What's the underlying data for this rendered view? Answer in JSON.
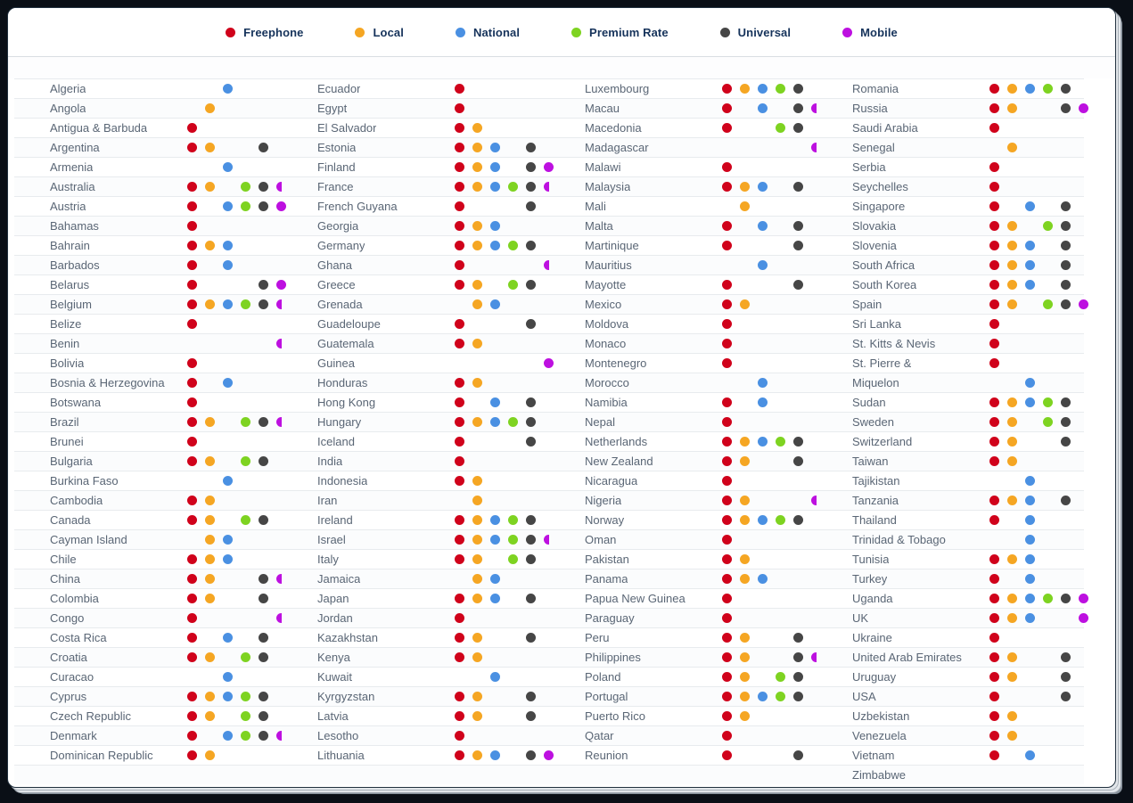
{
  "chart_data": {
    "type": "table",
    "title": "",
    "legend": [
      "Freephone",
      "Local",
      "National",
      "Premium Rate",
      "Universal",
      "Mobile"
    ],
    "legend_position": "top",
    "colors": [
      "#d0021b",
      "#f5a623",
      "#4a90e2",
      "#7ed321",
      "#464646",
      "#bd10e0"
    ],
    "note_dots_are_indices_into_legend": true,
    "columns": [
      [
        {
          "country": "Algeria",
          "dots": [
            2
          ]
        },
        {
          "country": "Angola",
          "dots": [
            1
          ]
        },
        {
          "country": "Antigua & Barbuda",
          "dots": [
            0
          ]
        },
        {
          "country": "Argentina",
          "dots": [
            0,
            1,
            4
          ]
        },
        {
          "country": "Armenia",
          "dots": [
            2
          ]
        },
        {
          "country": "Australia",
          "dots": [
            0,
            1,
            3,
            4,
            5
          ]
        },
        {
          "country": "Austria",
          "dots": [
            0,
            2,
            3,
            4,
            5
          ]
        },
        {
          "country": "Bahamas",
          "dots": [
            0
          ]
        },
        {
          "country": "Bahrain",
          "dots": [
            0,
            1,
            2
          ]
        },
        {
          "country": "Barbados",
          "dots": [
            0,
            2
          ]
        },
        {
          "country": "Belarus",
          "dots": [
            0,
            4,
            5
          ]
        },
        {
          "country": "Belgium",
          "dots": [
            0,
            1,
            2,
            3,
            4,
            5
          ]
        },
        {
          "country": "Belize",
          "dots": [
            0
          ]
        },
        {
          "country": "Benin",
          "dots": [
            5
          ]
        },
        {
          "country": "Bolivia",
          "dots": [
            0
          ]
        },
        {
          "country": "Bosnia & Herzegovina",
          "dots": [
            0,
            2
          ]
        },
        {
          "country": "Botswana",
          "dots": [
            0
          ]
        },
        {
          "country": "Brazil",
          "dots": [
            0,
            1,
            3,
            4,
            5
          ]
        },
        {
          "country": "Brunei",
          "dots": [
            0
          ]
        },
        {
          "country": "Bulgaria",
          "dots": [
            0,
            1,
            3,
            4
          ]
        },
        {
          "country": "Burkina Faso",
          "dots": [
            2
          ]
        },
        {
          "country": "Cambodia",
          "dots": [
            0,
            1
          ]
        },
        {
          "country": "Canada",
          "dots": [
            0,
            1,
            3,
            4
          ]
        },
        {
          "country": "Cayman Island",
          "dots": [
            1,
            2
          ]
        },
        {
          "country": "Chile",
          "dots": [
            0,
            1,
            2
          ]
        },
        {
          "country": "China",
          "dots": [
            0,
            1,
            4,
            5
          ]
        },
        {
          "country": "Colombia",
          "dots": [
            0,
            1,
            4
          ]
        },
        {
          "country": "Congo",
          "dots": [
            0,
            5
          ]
        },
        {
          "country": "Costa Rica",
          "dots": [
            0,
            2,
            4
          ]
        },
        {
          "country": "Croatia",
          "dots": [
            0,
            1,
            3,
            4
          ]
        },
        {
          "country": "Curacao",
          "dots": [
            2
          ]
        },
        {
          "country": "Cyprus",
          "dots": [
            0,
            1,
            2,
            3,
            4
          ]
        },
        {
          "country": "Czech Republic",
          "dots": [
            0,
            1,
            3,
            4
          ]
        },
        {
          "country": "Denmark",
          "dots": [
            0,
            2,
            3,
            4,
            5
          ]
        },
        {
          "country": "Dominican Republic",
          "dots": [
            0,
            1
          ]
        }
      ],
      [
        {
          "country": "Ecuador",
          "dots": [
            0
          ]
        },
        {
          "country": "Egypt",
          "dots": [
            0
          ]
        },
        {
          "country": "El Salvador",
          "dots": [
            0,
            1
          ]
        },
        {
          "country": "Estonia",
          "dots": [
            0,
            1,
            2,
            4
          ]
        },
        {
          "country": "Finland",
          "dots": [
            0,
            1,
            2,
            4,
            5
          ]
        },
        {
          "country": "France",
          "dots": [
            0,
            1,
            2,
            3,
            4,
            5
          ]
        },
        {
          "country": "French Guyana",
          "dots": [
            0,
            4
          ]
        },
        {
          "country": "Georgia",
          "dots": [
            0,
            1,
            2
          ]
        },
        {
          "country": "Germany",
          "dots": [
            0,
            1,
            2,
            3,
            4
          ]
        },
        {
          "country": "Ghana",
          "dots": [
            0,
            5
          ]
        },
        {
          "country": "Greece",
          "dots": [
            0,
            1,
            3,
            4
          ]
        },
        {
          "country": "Grenada",
          "dots": [
            1,
            2
          ]
        },
        {
          "country": "Guadeloupe",
          "dots": [
            0,
            4
          ]
        },
        {
          "country": "Guatemala",
          "dots": [
            0,
            1
          ]
        },
        {
          "country": "Guinea",
          "dots": [
            5
          ]
        },
        {
          "country": "Honduras",
          "dots": [
            0,
            1
          ]
        },
        {
          "country": "Hong Kong",
          "dots": [
            0,
            2,
            4
          ]
        },
        {
          "country": "Hungary",
          "dots": [
            0,
            1,
            2,
            3,
            4
          ]
        },
        {
          "country": "Iceland",
          "dots": [
            0,
            4
          ]
        },
        {
          "country": "India",
          "dots": [
            0
          ]
        },
        {
          "country": "Indonesia",
          "dots": [
            0,
            1
          ]
        },
        {
          "country": "Iran",
          "dots": [
            1
          ]
        },
        {
          "country": "Ireland",
          "dots": [
            0,
            1,
            2,
            3,
            4
          ]
        },
        {
          "country": "Israel",
          "dots": [
            0,
            1,
            2,
            3,
            4,
            5
          ]
        },
        {
          "country": "Italy",
          "dots": [
            0,
            1,
            3,
            4
          ]
        },
        {
          "country": "Jamaica",
          "dots": [
            1,
            2
          ]
        },
        {
          "country": "Japan",
          "dots": [
            0,
            1,
            2,
            4
          ]
        },
        {
          "country": "Jordan",
          "dots": [
            0
          ]
        },
        {
          "country": "Kazakhstan",
          "dots": [
            0,
            1,
            4
          ]
        },
        {
          "country": "Kenya",
          "dots": [
            0,
            1
          ]
        },
        {
          "country": "Kuwait",
          "dots": [
            2
          ]
        },
        {
          "country": "Kyrgyzstan",
          "dots": [
            0,
            1,
            4
          ]
        },
        {
          "country": "Latvia",
          "dots": [
            0,
            1,
            4
          ]
        },
        {
          "country": "Lesotho",
          "dots": [
            0
          ]
        },
        {
          "country": "Lithuania",
          "dots": [
            0,
            1,
            2,
            4,
            5
          ]
        }
      ],
      [
        {
          "country": "Luxembourg",
          "dots": [
            0,
            1,
            2,
            3,
            4
          ]
        },
        {
          "country": "Macau",
          "dots": [
            0,
            2,
            4,
            5
          ]
        },
        {
          "country": "Macedonia",
          "dots": [
            0,
            3,
            4
          ]
        },
        {
          "country": "Madagascar",
          "dots": [
            5
          ]
        },
        {
          "country": "Malawi",
          "dots": [
            0
          ]
        },
        {
          "country": "Malaysia",
          "dots": [
            0,
            1,
            2,
            4
          ]
        },
        {
          "country": "Mali",
          "dots": [
            1
          ]
        },
        {
          "country": "Malta",
          "dots": [
            0,
            2,
            4
          ]
        },
        {
          "country": "Martinique",
          "dots": [
            0,
            4
          ]
        },
        {
          "country": "Mauritius",
          "dots": [
            2
          ]
        },
        {
          "country": "Mayotte",
          "dots": [
            0,
            4
          ]
        },
        {
          "country": "Mexico",
          "dots": [
            0,
            1
          ]
        },
        {
          "country": "Moldova",
          "dots": [
            0
          ]
        },
        {
          "country": "Monaco",
          "dots": [
            0
          ]
        },
        {
          "country": "Montenegro",
          "dots": [
            0
          ]
        },
        {
          "country": "Morocco",
          "dots": [
            2
          ]
        },
        {
          "country": "Namibia",
          "dots": [
            0,
            2
          ]
        },
        {
          "country": "Nepal",
          "dots": [
            0
          ]
        },
        {
          "country": "Netherlands",
          "dots": [
            0,
            1,
            2,
            3,
            4
          ]
        },
        {
          "country": "New Zealand",
          "dots": [
            0,
            1,
            4
          ]
        },
        {
          "country": "Nicaragua",
          "dots": [
            0
          ]
        },
        {
          "country": "Nigeria",
          "dots": [
            0,
            1,
            5
          ]
        },
        {
          "country": "Norway",
          "dots": [
            0,
            1,
            2,
            3,
            4
          ]
        },
        {
          "country": "Oman",
          "dots": [
            0
          ]
        },
        {
          "country": "Pakistan",
          "dots": [
            0,
            1
          ]
        },
        {
          "country": "Panama",
          "dots": [
            0,
            1,
            2
          ]
        },
        {
          "country": "Papua New Guinea",
          "dots": [
            0
          ]
        },
        {
          "country": "Paraguay",
          "dots": [
            0
          ]
        },
        {
          "country": "Peru",
          "dots": [
            0,
            1,
            4
          ]
        },
        {
          "country": "Philippines",
          "dots": [
            0,
            1,
            4,
            5
          ]
        },
        {
          "country": "Poland",
          "dots": [
            0,
            1,
            3,
            4
          ]
        },
        {
          "country": "Portugal",
          "dots": [
            0,
            1,
            2,
            3,
            4
          ]
        },
        {
          "country": "Puerto Rico",
          "dots": [
            0,
            1
          ]
        },
        {
          "country": "Qatar",
          "dots": [
            0
          ]
        },
        {
          "country": "Reunion",
          "dots": [
            0,
            4
          ]
        }
      ],
      [
        {
          "country": "Romania",
          "dots": [
            0,
            1,
            2,
            3,
            4
          ]
        },
        {
          "country": "Russia",
          "dots": [
            0,
            1,
            4,
            5
          ]
        },
        {
          "country": "Saudi Arabia",
          "dots": [
            0
          ]
        },
        {
          "country": "Senegal",
          "dots": [
            1
          ]
        },
        {
          "country": "Serbia",
          "dots": [
            0
          ]
        },
        {
          "country": "Seychelles",
          "dots": [
            0
          ]
        },
        {
          "country": "Singapore",
          "dots": [
            0,
            2,
            4
          ]
        },
        {
          "country": "Slovakia",
          "dots": [
            0,
            1,
            3,
            4
          ]
        },
        {
          "country": "Slovenia",
          "dots": [
            0,
            1,
            2,
            4
          ]
        },
        {
          "country": "South Africa",
          "dots": [
            0,
            1,
            2,
            4
          ]
        },
        {
          "country": "South Korea",
          "dots": [
            0,
            1,
            2,
            4
          ]
        },
        {
          "country": "Spain",
          "dots": [
            0,
            1,
            3,
            4,
            5
          ]
        },
        {
          "country": "Sri Lanka",
          "dots": [
            0
          ]
        },
        {
          "country": "St. Kitts & Nevis",
          "dots": [
            0
          ]
        },
        {
          "country": "St. Pierre &",
          "dots": [
            0
          ]
        },
        {
          "country": "Miquelon",
          "dots": [
            2
          ]
        },
        {
          "country": "Sudan",
          "dots": [
            0,
            1,
            2,
            3,
            4
          ]
        },
        {
          "country": "Sweden",
          "dots": [
            0,
            1,
            3,
            4
          ]
        },
        {
          "country": "Switzerland",
          "dots": [
            0,
            1,
            4
          ]
        },
        {
          "country": "Taiwan",
          "dots": [
            0,
            1
          ]
        },
        {
          "country": "Tajikistan",
          "dots": [
            2
          ]
        },
        {
          "country": "Tanzania",
          "dots": [
            0,
            1,
            2,
            4
          ]
        },
        {
          "country": "Thailand",
          "dots": [
            0,
            2
          ]
        },
        {
          "country": "Trinidad & Tobago",
          "dots": [
            2
          ]
        },
        {
          "country": "Tunisia",
          "dots": [
            0,
            1,
            2
          ]
        },
        {
          "country": "Turkey",
          "dots": [
            0,
            2
          ]
        },
        {
          "country": "Uganda",
          "dots": [
            0,
            1,
            2,
            3,
            4,
            5
          ]
        },
        {
          "country": "UK",
          "dots": [
            0,
            1,
            2,
            5
          ]
        },
        {
          "country": "Ukraine",
          "dots": [
            0
          ]
        },
        {
          "country": "United Arab Emirates",
          "dots": [
            0,
            1,
            4
          ]
        },
        {
          "country": "Uruguay",
          "dots": [
            0,
            1,
            4
          ]
        },
        {
          "country": "USA",
          "dots": [
            0,
            4
          ]
        },
        {
          "country": "Uzbekistan",
          "dots": [
            0,
            1
          ]
        },
        {
          "country": "Venezuela",
          "dots": [
            0,
            1
          ]
        },
        {
          "country": "Vietnam",
          "dots": [
            0,
            2
          ]
        },
        {
          "country": "Zimbabwe",
          "dots": []
        }
      ]
    ]
  }
}
